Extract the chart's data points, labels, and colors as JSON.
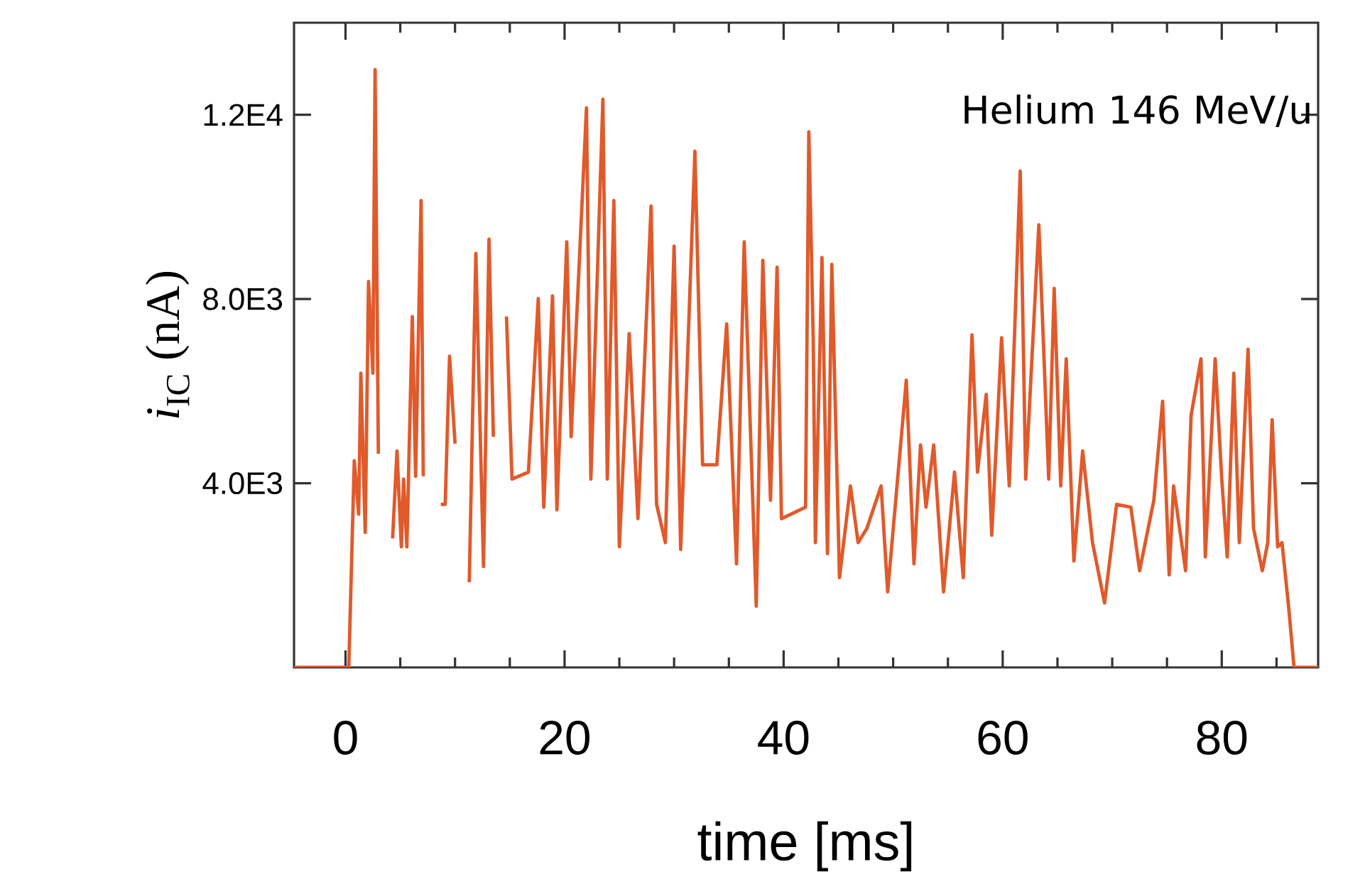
{
  "chart_data": {
    "type": "line",
    "xlabel": "time [ms]",
    "ylabel": "*i*$_{IC}$ (nA)",
    "annotations": [
      "Helium 146 MeV/u"
    ],
    "xlim": [
      -4.7,
      88.8
    ],
    "ylim": [
      0,
      14000
    ],
    "xticks": [
      0,
      {
        "value": 5,
        "label": null
      },
      {
        "value": 10,
        "label": null
      },
      {
        "value": 15,
        "label": null
      },
      20,
      {
        "value": 25,
        "label": null
      },
      {
        "value": 30,
        "label": null
      },
      {
        "value": 35,
        "label": null
      },
      40,
      {
        "value": 45,
        "label": null
      },
      {
        "value": 50,
        "label": null
      },
      {
        "value": 55,
        "label": null
      },
      60,
      {
        "value": 65,
        "label": null
      },
      {
        "value": 70,
        "label": null
      },
      {
        "value": 75,
        "label": null
      },
      80,
      {
        "value": 85,
        "label": null
      }
    ],
    "yticks": [
      {
        "value": 4000,
        "label": "4.0E3"
      },
      {
        "value": 8000,
        "label": "8.0E3"
      },
      {
        "value": 12000,
        "label": "1.2E4"
      }
    ],
    "grid": false,
    "marker": "none",
    "line_style": "solid",
    "series": [
      {
        "color": "#e05a2b",
        "x": [
          -4.7,
          0.3,
          0.8,
          1.2,
          1.4,
          1.8,
          2.1,
          2.5,
          2.7,
          3.0,
          3.5,
          3.8,
          4.3,
          4.7,
          5.1,
          5.3,
          5.6,
          6.1,
          6.4,
          6.9,
          7.1,
          7.7,
          8.2,
          8.7,
          9.1,
          9.5,
          10.0,
          10.5,
          10.8,
          11.3,
          11.9,
          12.6,
          13.1,
          13.5,
          14.1,
          14.7,
          15.2,
          16.7,
          17.6,
          18.1,
          18.9,
          19.3,
          20.2,
          20.6,
          22.0,
          22.4,
          23.5,
          23.9,
          24.5,
          25.0,
          25.9,
          26.7,
          27.9,
          28.4,
          29.2,
          30.0,
          30.6,
          31.9,
          32.6,
          33.9,
          34.8,
          35.7,
          36.4,
          37.5,
          38.1,
          38.8,
          39.4,
          39.8,
          42.0,
          42.3,
          42.7,
          42.9,
          43.5,
          44.0,
          44.4,
          45.1,
          46.1,
          46.8,
          47.6,
          48.9,
          49.5,
          51.2,
          51.9,
          52.5,
          53.0,
          53.7,
          54.6,
          55.6,
          56.4,
          57.2,
          57.7,
          58.5,
          59.0,
          59.9,
          60.6,
          61.6,
          62.1,
          63.3,
          64.2,
          64.7,
          65.3,
          65.8,
          66.5,
          67.3,
          68.2,
          69.3,
          70.4,
          71.7,
          72.5,
          73.8,
          74.6,
          75.2,
          75.6,
          76.7,
          77.2,
          78.1,
          78.5,
          79.4,
          80.0,
          80.5,
          81.1,
          81.6,
          82.4,
          82.9,
          83.7,
          84.2,
          84.6,
          85.1,
          85.5,
          86.1,
          86.6,
          88.8
        ],
        "values": [
          0,
          0,
          4490,
          3330,
          6390,
          2930,
          8380,
          6390,
          12980,
          4640,
          null,
          null,
          2800,
          4700,
          2620,
          4090,
          2620,
          7620,
          4150,
          10140,
          4150,
          null,
          null,
          3540,
          3540,
          6760,
          4860,
          null,
          null,
          1850,
          8990,
          2190,
          9300,
          5010,
          null,
          7620,
          4090,
          4240,
          8010,
          3480,
          8070,
          3420,
          9240,
          5010,
          12150,
          4090,
          12340,
          4090,
          10140,
          2620,
          7250,
          3230,
          10020,
          3540,
          2710,
          9150,
          2560,
          11210,
          4400,
          4400,
          7460,
          2250,
          9240,
          1330,
          8840,
          3630,
          8690,
          3230,
          3480,
          11630,
          7160,
          2710,
          8900,
          2470,
          8750,
          1950,
          3940,
          2710,
          3020,
          3940,
          1640,
          6240,
          2250,
          4830,
          3480,
          4830,
          1640,
          4240,
          1950,
          7220,
          4240,
          5930,
          2870,
          7160,
          3940,
          10780,
          4090,
          9610,
          4090,
          8230,
          3940,
          6700,
          2310,
          4700,
          2710,
          1400,
          3540,
          3480,
          2100,
          3630,
          5780,
          2010,
          3940,
          2100,
          5470,
          6700,
          2400,
          6700,
          4090,
          2400,
          6390,
          2710,
          6910,
          3020,
          2100,
          2710,
          5380,
          2620,
          2710,
          1330,
          0,
          0
        ]
      }
    ]
  }
}
